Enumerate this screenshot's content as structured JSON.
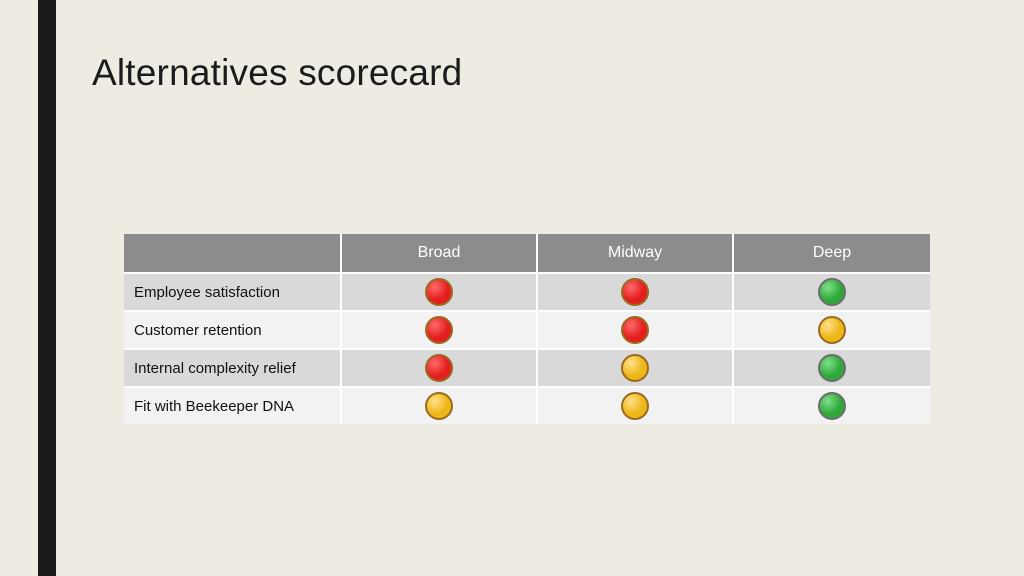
{
  "slide": {
    "background_color": "#eeece2",
    "accent_bar_color": "#1b1b1b",
    "title": "Alternatives scorecard",
    "title_color": "#1b1b1b"
  },
  "table": {
    "header_bg": "#8c8c8c",
    "header_text_color": "#ffffff",
    "row_bg_odd": "#d9d9d9",
    "row_bg_even": "#f2f2f2",
    "columns": [
      "Broad",
      "Midway",
      "Deep"
    ],
    "rows": [
      {
        "label": "Employee satisfaction",
        "cells": [
          "red",
          "red",
          "green"
        ]
      },
      {
        "label": "Customer retention",
        "cells": [
          "red",
          "red",
          "yellow"
        ]
      },
      {
        "label": "Internal complexity relief",
        "cells": [
          "red",
          "yellow",
          "green"
        ]
      },
      {
        "label": "Fit with Beekeeper DNA",
        "cells": [
          "yellow",
          "yellow",
          "green"
        ]
      }
    ]
  },
  "dot_styles": {
    "red": {
      "fill": "#e31e1e",
      "border": "#9a6a20",
      "gloss": "#ff6a6a"
    },
    "yellow": {
      "fill": "#edb718",
      "border": "#9a6a20",
      "gloss": "#ffe18a"
    },
    "green": {
      "fill": "#2fa83a",
      "border": "#6d6d6d",
      "gloss": "#7fe08a"
    }
  }
}
